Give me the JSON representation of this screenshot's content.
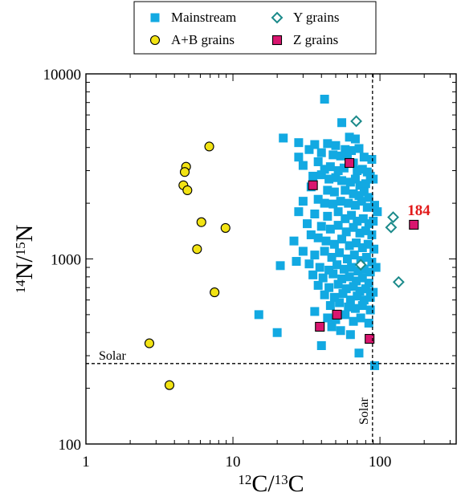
{
  "chart_data": {
    "type": "scatter",
    "xlabel": {
      "sup1": "12",
      "mid": "C/",
      "sup2": "13",
      "tail": "C"
    },
    "ylabel": {
      "sup1": "14",
      "mid": "N/",
      "sup2": "15",
      "tail": "N"
    },
    "xscale": "log",
    "yscale": "log",
    "xlim": [
      1,
      330
    ],
    "ylim": [
      100,
      10000
    ],
    "xticks": [
      1,
      10,
      100
    ],
    "xtick_labels": [
      "1",
      "10",
      "100"
    ],
    "yticks": [
      100,
      1000,
      10000
    ],
    "ytick_labels": [
      "100",
      "1000",
      "10000"
    ],
    "legend_position": "top (outside plot)",
    "reference_lines": [
      {
        "axis": "y",
        "value": 272,
        "label": "Solar"
      },
      {
        "axis": "x",
        "value": 89,
        "label": "Solar"
      }
    ],
    "annotations": [
      {
        "text": "184",
        "x": 170,
        "y": 1530,
        "color": "#e21b1b"
      }
    ],
    "series": [
      {
        "name": "Mainstream",
        "marker": "square",
        "color": "#12a9e2",
        "points": [
          [
            42,
            7300
          ],
          [
            55,
            5450
          ],
          [
            62,
            4550
          ],
          [
            68,
            4450
          ],
          [
            22,
            4500
          ],
          [
            28,
            4250
          ],
          [
            36,
            4150
          ],
          [
            44,
            4200
          ],
          [
            50,
            4100
          ],
          [
            33,
            3900
          ],
          [
            40,
            3750
          ],
          [
            58,
            3900
          ],
          [
            64,
            3850
          ],
          [
            72,
            3950
          ],
          [
            28,
            3550
          ],
          [
            48,
            3650
          ],
          [
            54,
            3600
          ],
          [
            60,
            3700
          ],
          [
            66,
            3300
          ],
          [
            78,
            3550
          ],
          [
            88,
            3450
          ],
          [
            30,
            3200
          ],
          [
            38,
            3350
          ],
          [
            42,
            3050
          ],
          [
            46,
            3150
          ],
          [
            52,
            3000
          ],
          [
            57,
            3100
          ],
          [
            70,
            3000
          ],
          [
            76,
            3050
          ],
          [
            82,
            2950
          ],
          [
            35,
            2800
          ],
          [
            40,
            2850
          ],
          [
            45,
            2700
          ],
          [
            50,
            2750
          ],
          [
            55,
            2650
          ],
          [
            63,
            2600
          ],
          [
            68,
            2700
          ],
          [
            73,
            2500
          ],
          [
            80,
            2550
          ],
          [
            86,
            2800
          ],
          [
            90,
            2700
          ],
          [
            34,
            2450
          ],
          [
            44,
            2350
          ],
          [
            49,
            2300
          ],
          [
            58,
            2350
          ],
          [
            66,
            2250
          ],
          [
            72,
            2200
          ],
          [
            78,
            2300
          ],
          [
            84,
            2150
          ],
          [
            30,
            2050
          ],
          [
            38,
            2100
          ],
          [
            42,
            2000
          ],
          [
            48,
            1980
          ],
          [
            54,
            2050
          ],
          [
            61,
            2000
          ],
          [
            68,
            1950
          ],
          [
            75,
            2050
          ],
          [
            82,
            1900
          ],
          [
            92,
            1950
          ],
          [
            96,
            1800
          ],
          [
            28,
            1800
          ],
          [
            36,
            1750
          ],
          [
            44,
            1700
          ],
          [
            52,
            1800
          ],
          [
            58,
            1650
          ],
          [
            64,
            1720
          ],
          [
            70,
            1600
          ],
          [
            77,
            1650
          ],
          [
            84,
            1550
          ],
          [
            90,
            1600
          ],
          [
            32,
            1550
          ],
          [
            40,
            1500
          ],
          [
            46,
            1450
          ],
          [
            52,
            1520
          ],
          [
            59,
            1400
          ],
          [
            66,
            1480
          ],
          [
            73,
            1380
          ],
          [
            80,
            1420
          ],
          [
            88,
            1350
          ],
          [
            26,
            1250
          ],
          [
            34,
            1350
          ],
          [
            38,
            1300
          ],
          [
            43,
            1250
          ],
          [
            49,
            1200
          ],
          [
            55,
            1280
          ],
          [
            62,
            1180
          ],
          [
            69,
            1220
          ],
          [
            76,
            1150
          ],
          [
            83,
            1200
          ],
          [
            91,
            1130
          ],
          [
            30,
            1100
          ],
          [
            36,
            1050
          ],
          [
            42,
            1100
          ],
          [
            47,
            1020
          ],
          [
            53,
            1080
          ],
          [
            60,
            1000
          ],
          [
            67,
            1050
          ],
          [
            74,
            980
          ],
          [
            81,
            1020
          ],
          [
            88,
            960
          ],
          [
            21,
            920
          ],
          [
            27,
            970
          ],
          [
            33,
            940
          ],
          [
            39,
            900
          ],
          [
            45,
            870
          ],
          [
            51,
            930
          ],
          [
            57,
            880
          ],
          [
            64,
            900
          ],
          [
            71,
            860
          ],
          [
            78,
            880
          ],
          [
            86,
            850
          ],
          [
            94,
            900
          ],
          [
            35,
            820
          ],
          [
            41,
            790
          ],
          [
            48,
            830
          ],
          [
            55,
            780
          ],
          [
            62,
            800
          ],
          [
            69,
            760
          ],
          [
            76,
            790
          ],
          [
            84,
            740
          ],
          [
            38,
            720
          ],
          [
            45,
            700
          ],
          [
            52,
            730
          ],
          [
            59,
            690
          ],
          [
            66,
            710
          ],
          [
            73,
            670
          ],
          [
            80,
            690
          ],
          [
            90,
            660
          ],
          [
            42,
            640
          ],
          [
            49,
            620
          ],
          [
            56,
            650
          ],
          [
            63,
            600
          ],
          [
            70,
            630
          ],
          [
            78,
            600
          ],
          [
            86,
            620
          ],
          [
            46,
            560
          ],
          [
            53,
            580
          ],
          [
            61,
            550
          ],
          [
            68,
            540
          ],
          [
            76,
            560
          ],
          [
            86,
            530
          ],
          [
            36,
            520
          ],
          [
            44,
            480
          ],
          [
            50,
            470
          ],
          [
            58,
            500
          ],
          [
            66,
            460
          ],
          [
            74,
            480
          ],
          [
            84,
            450
          ],
          [
            15,
            500
          ],
          [
            20,
            400
          ],
          [
            47,
            430
          ],
          [
            54,
            410
          ],
          [
            63,
            390
          ],
          [
            40,
            340
          ],
          [
            72,
            310
          ],
          [
            92,
            265
          ]
        ]
      },
      {
        "name": "A+B grains",
        "marker": "circle",
        "color": "#f2e313",
        "points": [
          [
            6.9,
            4050
          ],
          [
            4.8,
            3150
          ],
          [
            4.7,
            2950
          ],
          [
            4.6,
            2500
          ],
          [
            4.9,
            2350
          ],
          [
            6.1,
            1580
          ],
          [
            8.9,
            1470
          ],
          [
            5.7,
            1130
          ],
          [
            7.5,
            660
          ],
          [
            2.7,
            350
          ],
          [
            3.7,
            208
          ]
        ]
      },
      {
        "name": "Y grains",
        "marker": "diamond",
        "color": "#1b8a8a",
        "points": [
          [
            69,
            5550
          ],
          [
            123,
            1680
          ],
          [
            119,
            1480
          ],
          [
            74,
            930
          ],
          [
            134,
            750
          ]
        ]
      },
      {
        "name": "Z grains",
        "marker": "square",
        "color": "#d9166f",
        "points": [
          [
            62,
            3300
          ],
          [
            35,
            2500
          ],
          [
            170,
            1530
          ],
          [
            51,
            500
          ],
          [
            39,
            430
          ],
          [
            85,
            370
          ]
        ]
      }
    ]
  }
}
